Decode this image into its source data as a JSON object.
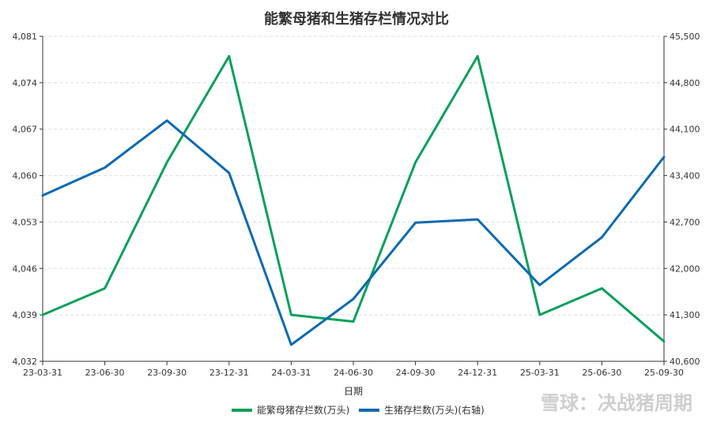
{
  "chart_data": {
    "type": "line",
    "title": "能繁母猪和生猪存栏情况对比",
    "xlabel": "日期",
    "categories": [
      "23-03-31",
      "23-06-30",
      "23-09-30",
      "23-12-31",
      "24-03-31",
      "24-06-30",
      "24-09-30",
      "24-12-31",
      "25-03-31",
      "25-06-30",
      "25-09-30"
    ],
    "y_left": {
      "ylim": [
        4032,
        4081
      ],
      "ticks": [
        "4,032",
        "4,039",
        "4,046",
        "4,053",
        "4,060",
        "4,067",
        "4,074",
        "4,081"
      ]
    },
    "y_right": {
      "ylim": [
        40600,
        45500
      ],
      "ticks": [
        "40,600",
        "41,300",
        "42,000",
        "42,700",
        "43,400",
        "44,100",
        "44,800",
        "45,500"
      ]
    },
    "series": [
      {
        "name": "能繁母猪存栏数(万头)",
        "axis": "left",
        "color": "#0aa05a",
        "values": [
          4039,
          4043,
          4062,
          4078,
          4039,
          4038,
          4062,
          4078,
          4039,
          4043,
          4035
        ]
      },
      {
        "name": "生猪存栏数(万头)(右轴)",
        "axis": "right",
        "color": "#0b6ab1",
        "values": [
          43100,
          43520,
          44230,
          43440,
          40850,
          41540,
          42690,
          42740,
          41750,
          42470,
          43680
        ]
      }
    ],
    "grid": true,
    "legend": "bottom-center"
  },
  "watermark": "雪球：决战猪周期"
}
